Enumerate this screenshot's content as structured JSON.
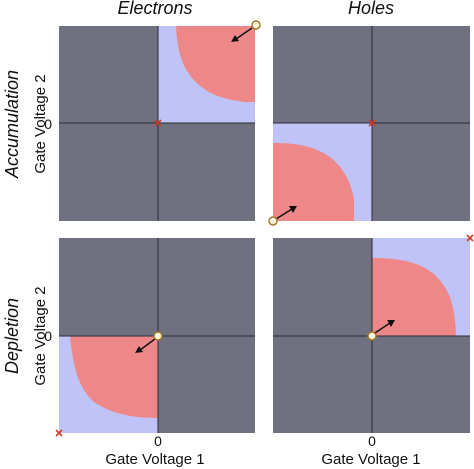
{
  "column_headers": {
    "electrons": "Electrons",
    "holes": "Holes"
  },
  "row_headers": {
    "accumulation": "Accumulation",
    "depletion": "Depletion"
  },
  "axes": {
    "x_label": "Gate Voltage 1",
    "y_label": "Gate Voltage 2",
    "zero": "0"
  },
  "colors": {
    "background": "#6f7180",
    "fill_light": "#c0c3f7",
    "fill_dark": "#ee8888",
    "axis_line": "#2a2a34",
    "marker": "#d63a2a",
    "circle_fill": "#fff6e0",
    "circle_stroke": "#a07a28"
  }
}
